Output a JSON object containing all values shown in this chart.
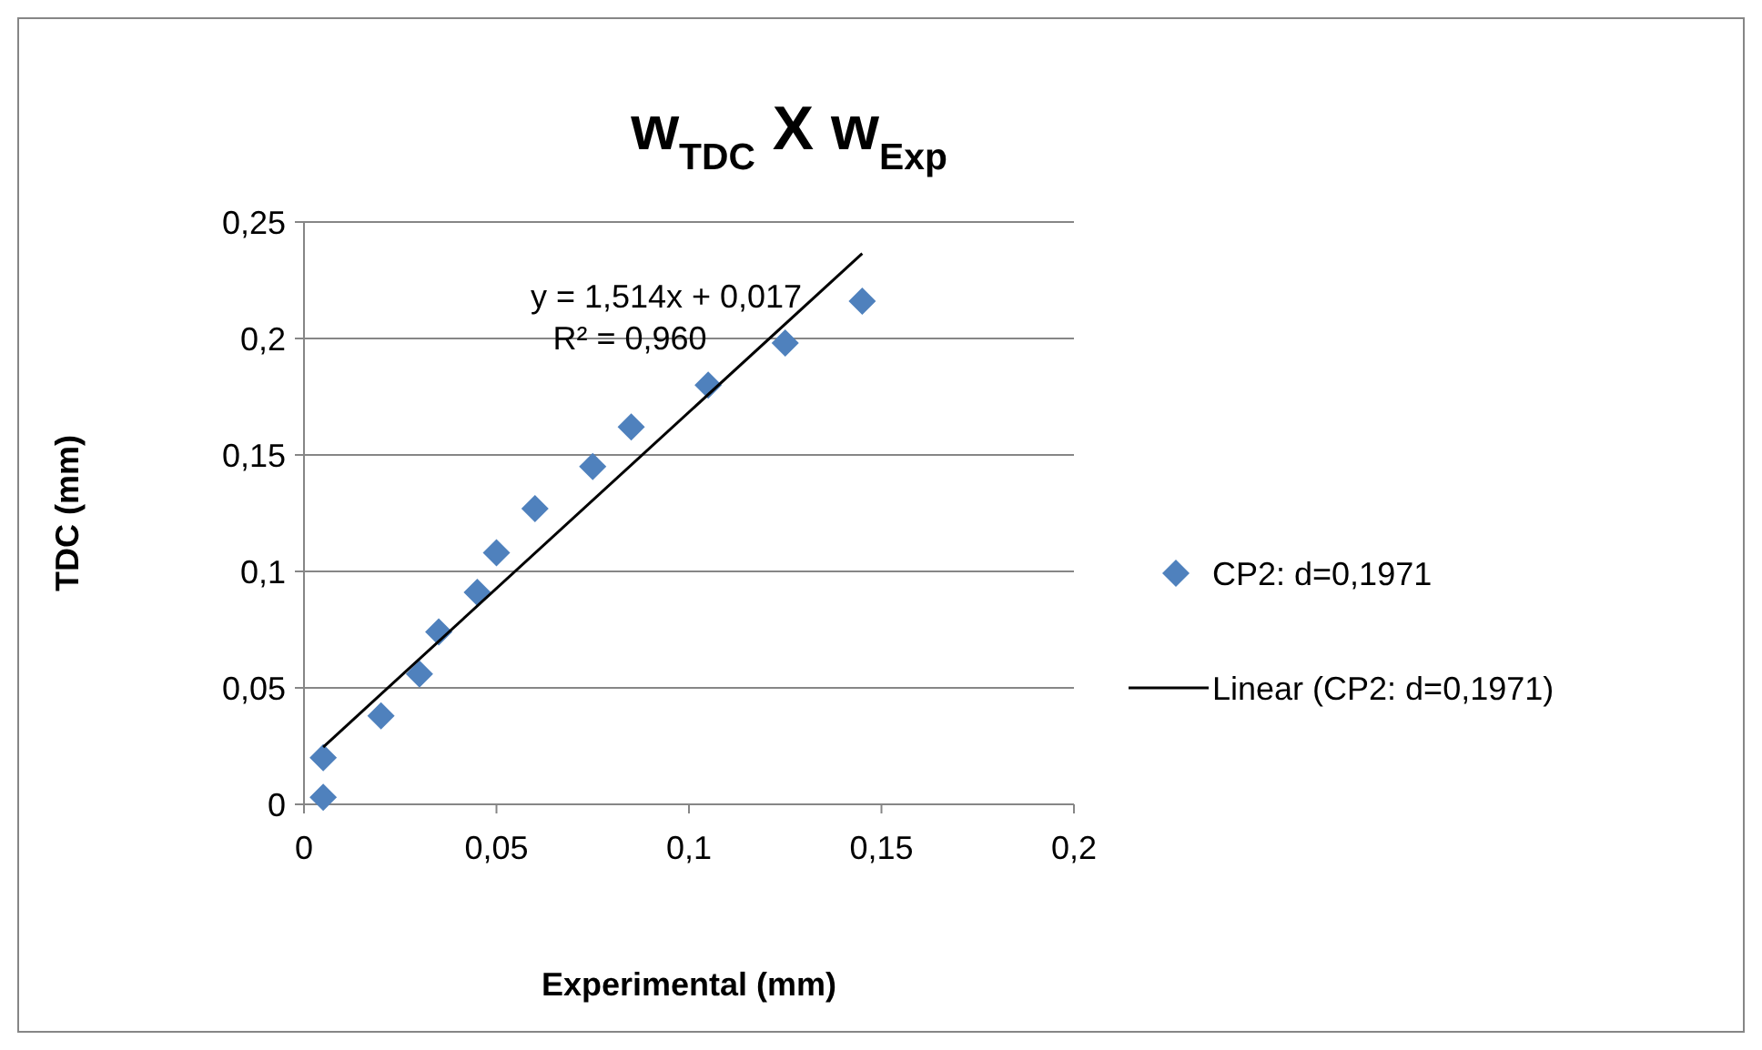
{
  "chart_data": {
    "type": "scatter",
    "title": "w$_{TDC}$ X w$_{Exp}$",
    "xlabel": "Experimental (mm)",
    "ylabel": "TDC (mm)",
    "xlim": [
      0,
      0.2
    ],
    "ylim": [
      0,
      0.25
    ],
    "xticks": [
      0,
      {
        "value": 0.05,
        "label": "0,05"
      },
      {
        "value": 0.1,
        "label": "0,1"
      },
      {
        "value": 0.15,
        "label": "0,15"
      },
      {
        "value": 0.2,
        "label": "0,2"
      }
    ],
    "yticks": [
      0,
      {
        "value": 0.05,
        "label": "0,05"
      },
      {
        "value": 0.1,
        "label": "0,1"
      },
      {
        "value": 0.15,
        "label": "0,15"
      },
      {
        "value": 0.2,
        "label": "0,2"
      },
      {
        "value": 0.25,
        "label": "0,25"
      }
    ],
    "grid": "y",
    "legend": "right",
    "annotations": [
      "y = 1,514x + 0,017",
      "R² = 0,960"
    ],
    "series": [
      {
        "name": "CP2: d=0,1971",
        "marker": "diamond",
        "color": "#4f81bd",
        "x": [
          0.005,
          0.005,
          0.02,
          0.03,
          0.035,
          0.045,
          0.05,
          0.06,
          0.075,
          0.085,
          0.105,
          0.125,
          0.145
        ],
        "values": [
          0.003,
          0.02,
          0.038,
          0.056,
          0.074,
          0.091,
          0.108,
          0.127,
          0.145,
          0.162,
          0.18,
          0.198,
          0.216
        ]
      },
      {
        "name": "Linear (CP2: d=0,1971)",
        "type": "line",
        "marker": "none",
        "line_style": "solid",
        "color": "#000000",
        "x": [
          0.005,
          0.145
        ],
        "values": [
          0.0246,
          0.2365
        ]
      }
    ]
  }
}
